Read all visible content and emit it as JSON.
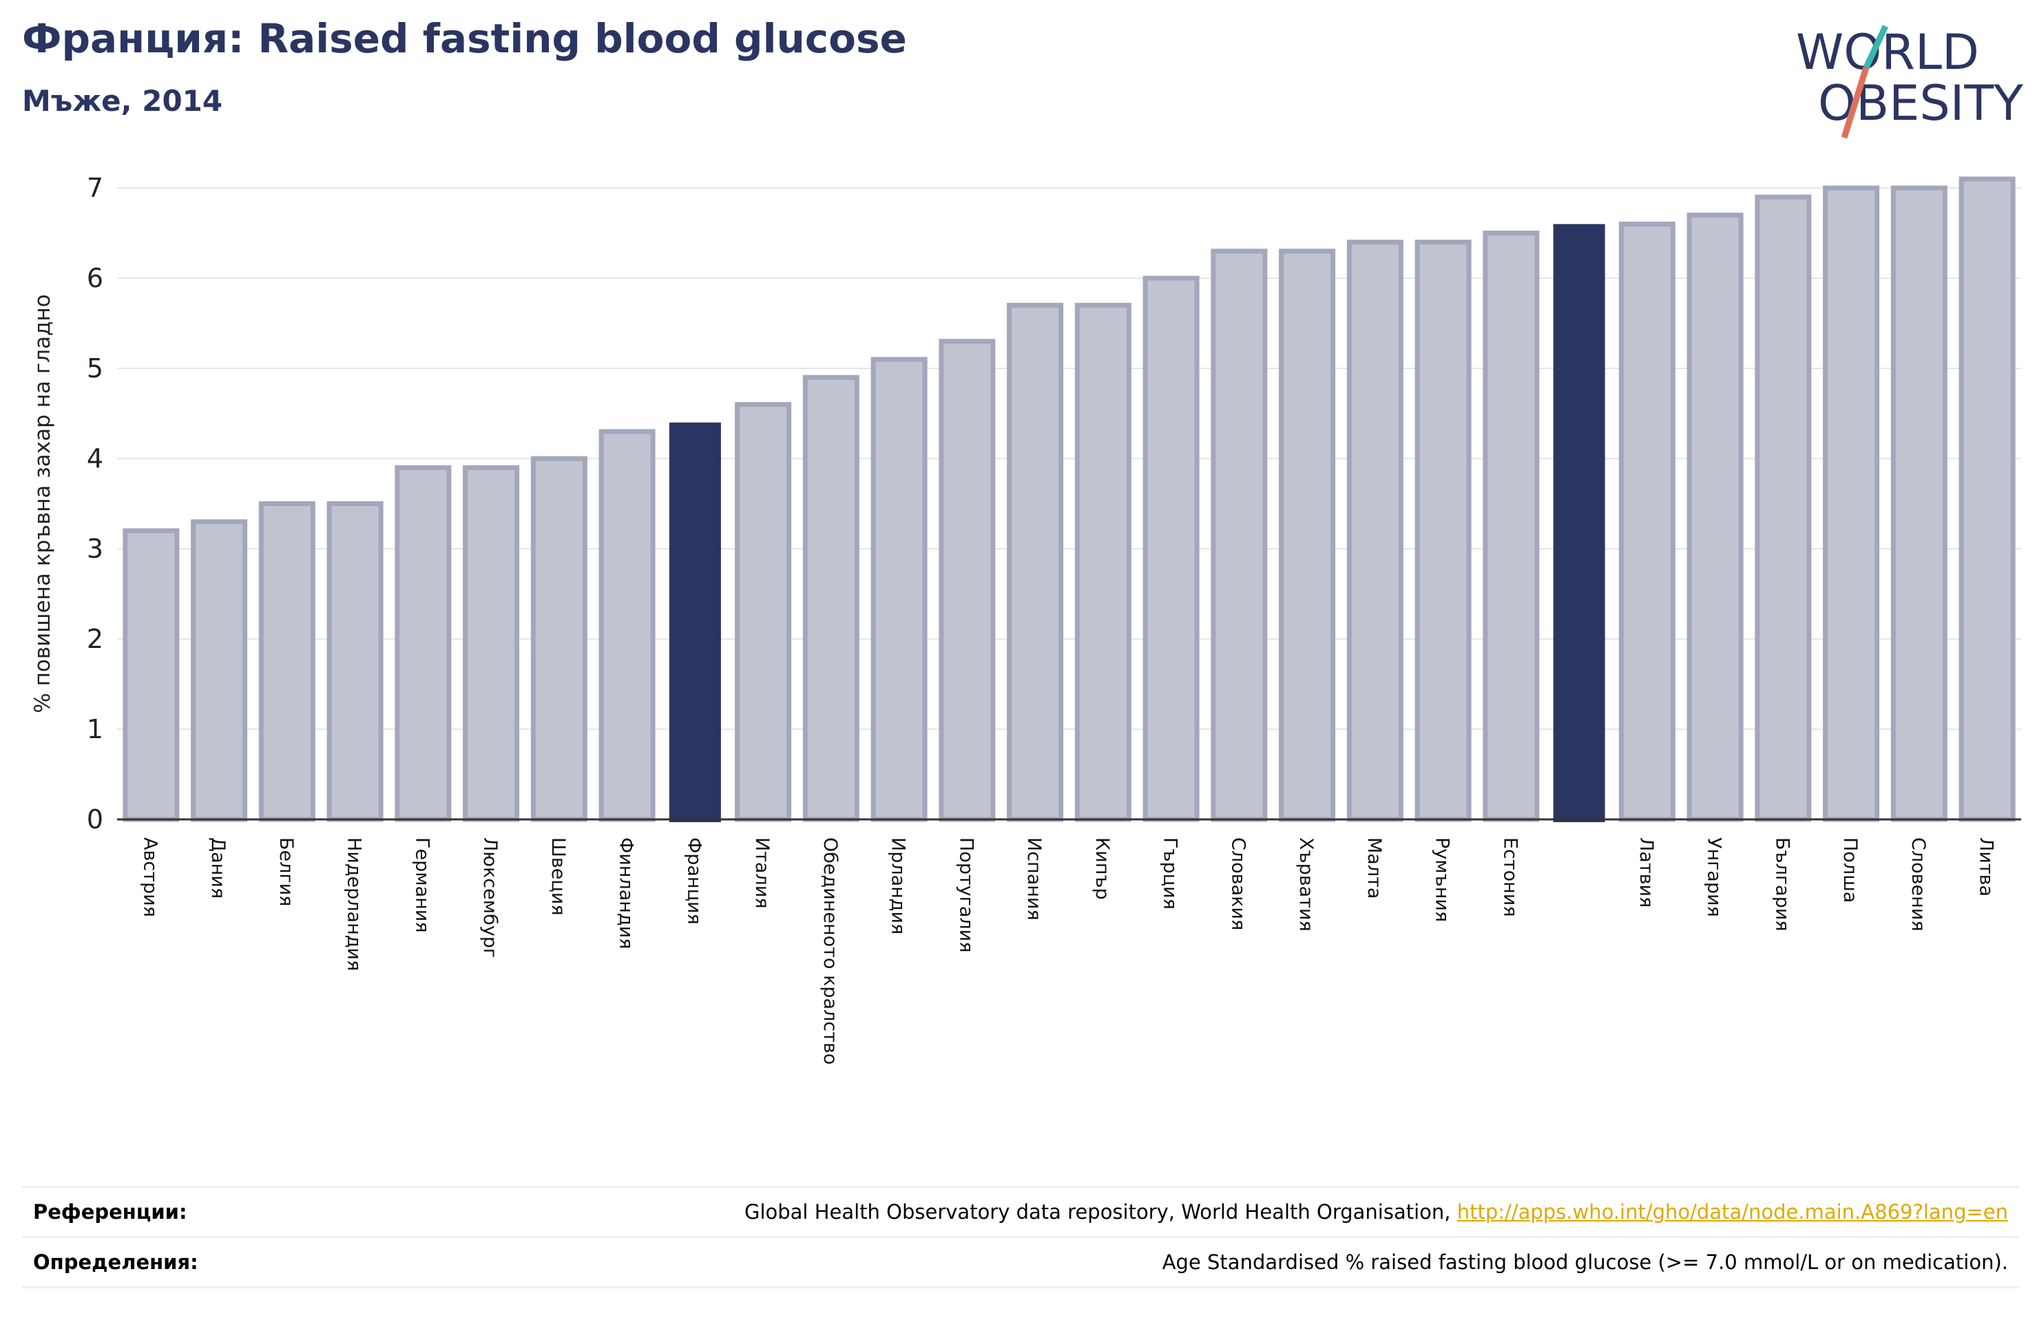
{
  "header": {
    "title": "Франция: Raised fasting blood glucose",
    "subtitle": "Мъже, 2014"
  },
  "logo": {
    "line1": "WORLD",
    "line2": "OBESITY"
  },
  "chart_data": {
    "type": "bar",
    "ylabel": "% повишена кръвна захар на гладно",
    "ylim": [
      0,
      7.3
    ],
    "yticks": [
      0,
      1,
      2,
      3,
      4,
      5,
      6,
      7
    ],
    "grid": true,
    "categories": [
      "Австрия",
      "Дания",
      "Белгия",
      "Нидерландия",
      "Германия",
      "Люксембург",
      "Швеция",
      "Финландия",
      "Франция",
      "Италия",
      "Обединеното кралство",
      "Ирландия",
      "Португалия",
      "Испания",
      "Кипър",
      "Гърция",
      "Словакия",
      "Хърватия",
      "Малта",
      "Румъния",
      "Естония",
      "",
      "Латвия",
      "Унгария",
      "България",
      "Полша",
      "Словения",
      "Литва"
    ],
    "values": [
      3.2,
      3.3,
      3.5,
      3.5,
      3.9,
      3.9,
      4.0,
      4.3,
      4.4,
      4.6,
      4.9,
      5.1,
      5.3,
      5.7,
      5.7,
      6.0,
      6.3,
      6.3,
      6.4,
      6.4,
      6.5,
      6.6,
      6.6,
      6.7,
      6.9,
      7.0,
      7.0,
      7.1
    ],
    "highlight": [
      8,
      21
    ],
    "colors": {
      "bar": "#c0c3d0",
      "bar_edge": "#a3a7bc",
      "highlight": "#2b3562",
      "grid": "#e6e6e6",
      "axis": "#333333"
    }
  },
  "references": {
    "refs_label": "Референции:",
    "refs_text": "Global Health Observatory data repository, World Health Organisation, ",
    "refs_link": "http://apps.who.int/gho/data/node.main.A869?lang=en",
    "defs_label": "Определения:",
    "defs_text": "Age Standardised % raised fasting blood glucose (>= 7.0 mmol/L or on medication)."
  }
}
